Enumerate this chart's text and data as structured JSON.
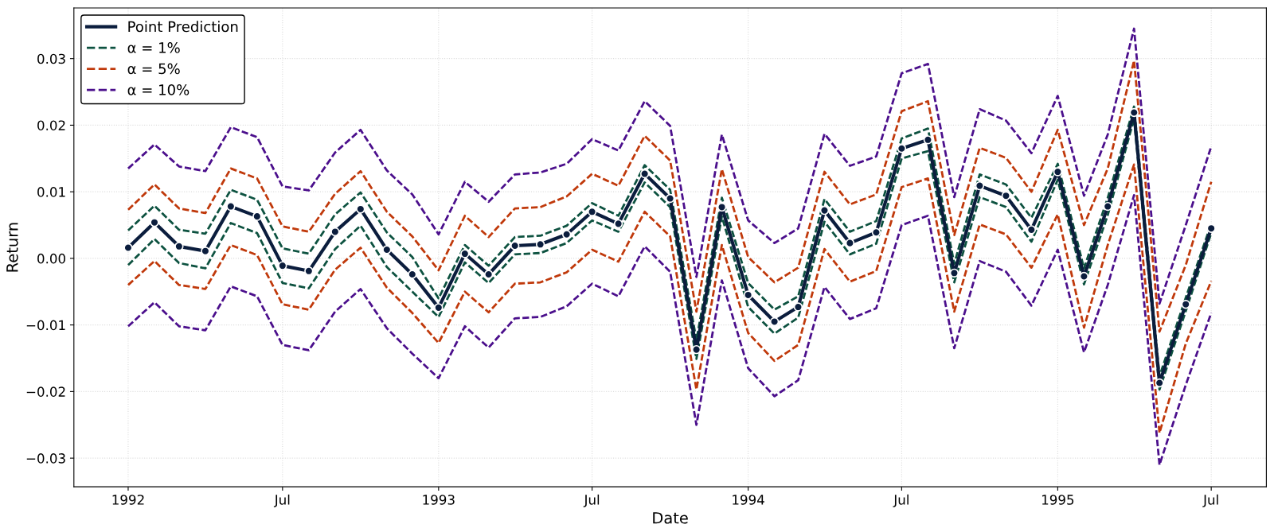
{
  "chart_data": {
    "type": "line",
    "xlabel": "Date",
    "ylabel": "Return",
    "x": [
      "1992-01",
      "1992-02",
      "1992-03",
      "1992-04",
      "1992-05",
      "1992-06",
      "1992-07",
      "1992-08",
      "1992-09",
      "1992-10",
      "1992-11",
      "1992-12",
      "1993-01",
      "1993-02",
      "1993-03",
      "1993-04",
      "1993-05",
      "1993-06",
      "1993-07",
      "1993-08",
      "1993-09",
      "1993-10",
      "1993-11",
      "1993-12",
      "1994-01",
      "1994-02",
      "1994-03",
      "1994-04",
      "1994-05",
      "1994-06",
      "1994-07",
      "1994-08",
      "1994-09",
      "1994-10",
      "1994-11",
      "1994-12",
      "1995-01",
      "1995-02",
      "1995-03",
      "1995-04",
      "1995-05",
      "1995-06",
      "1995-07"
    ],
    "series": [
      {
        "name": "α = 10%",
        "color": "#4b0f8c",
        "line_style": "dashed",
        "marker": "none",
        "values": [
          0.0135,
          0.0171,
          0.0138,
          0.0131,
          0.0197,
          0.0182,
          0.0108,
          0.0102,
          0.0159,
          0.0193,
          0.0132,
          0.0096,
          0.0036,
          0.0115,
          0.0085,
          0.0126,
          0.0129,
          0.0142,
          0.0179,
          0.0162,
          0.0236,
          0.0199,
          -0.0028,
          0.0186,
          0.0057,
          0.0023,
          0.0045,
          0.0187,
          0.0139,
          0.0153,
          0.0278,
          0.0292,
          0.0092,
          0.0224,
          0.0207,
          0.0158,
          0.0244,
          0.0094,
          0.0186,
          0.0345,
          -0.0068,
          0.005,
          0.0168
        ]
      },
      {
        "color": "#4b0f8c",
        "line_style": "dashed",
        "marker": "none",
        "values": [
          -0.0102,
          -0.0066,
          -0.0102,
          -0.0108,
          -0.0042,
          -0.0057,
          -0.013,
          -0.0138,
          -0.008,
          -0.0046,
          -0.0105,
          -0.0143,
          -0.018,
          -0.0102,
          -0.0134,
          -0.009,
          -0.0088,
          -0.0072,
          -0.0038,
          -0.0057,
          0.0018,
          -0.002,
          -0.025,
          -0.0033,
          -0.0165,
          -0.0207,
          -0.0183,
          -0.0043,
          -0.0091,
          -0.0075,
          0.005,
          0.0064,
          -0.0135,
          -0.0004,
          -0.002,
          -0.0071,
          0.0013,
          -0.0141,
          -0.004,
          0.0095,
          -0.031,
          -0.019,
          -0.0082
        ]
      },
      {
        "name": "α = 5%",
        "color": "#c0390b",
        "line_style": "dashed",
        "marker": "none",
        "values": [
          0.0073,
          0.0111,
          0.0075,
          0.0068,
          0.0135,
          0.012,
          0.0048,
          0.004,
          0.0097,
          0.0131,
          0.007,
          0.0033,
          -0.0018,
          0.0064,
          0.0032,
          0.0075,
          0.0077,
          0.0093,
          0.0127,
          0.0109,
          0.0184,
          0.0147,
          -0.008,
          0.0134,
          0.0002,
          -0.0036,
          -0.0014,
          0.013,
          0.0081,
          0.0096,
          0.0221,
          0.0236,
          0.0035,
          0.0166,
          0.0151,
          0.01,
          0.0193,
          0.005,
          0.0135,
          0.0297,
          -0.011,
          -0.001,
          0.0115
        ]
      },
      {
        "color": "#c0390b",
        "line_style": "dashed",
        "marker": "none",
        "values": [
          -0.004,
          -0.0004,
          -0.004,
          -0.0046,
          0.002,
          0.0005,
          -0.0069,
          -0.0077,
          -0.0017,
          0.0016,
          -0.0044,
          -0.0082,
          -0.0127,
          -0.005,
          -0.0081,
          -0.0038,
          -0.0036,
          -0.0021,
          0.0013,
          -0.0005,
          0.007,
          0.0033,
          -0.0197,
          0.002,
          -0.0112,
          -0.0154,
          -0.013,
          0.0014,
          -0.0035,
          -0.0019,
          0.0107,
          0.012,
          -0.008,
          0.0051,
          0.0036,
          -0.0014,
          0.0066,
          -0.0104,
          0.002,
          0.0141,
          -0.0262,
          -0.0128,
          -0.0034
        ]
      },
      {
        "name": "α = 1%",
        "color": "#0d5240",
        "line_style": "dashed",
        "marker": "none",
        "values": [
          0.0042,
          0.0079,
          0.0043,
          0.0037,
          0.0103,
          0.0088,
          0.0015,
          0.0007,
          0.0066,
          0.0099,
          0.0039,
          0.0002,
          -0.006,
          0.002,
          -0.0011,
          0.0032,
          0.0034,
          0.0049,
          0.0083,
          0.0064,
          0.014,
          0.0103,
          -0.0123,
          0.0091,
          -0.0037,
          -0.0077,
          -0.0057,
          0.0089,
          0.004,
          0.0056,
          0.018,
          0.0195,
          -0.0008,
          0.0126,
          0.0111,
          0.0061,
          0.0142,
          -0.0015,
          0.0091,
          0.0228,
          -0.0177,
          -0.0059,
          0.0052
        ]
      },
      {
        "color": "#0d5240",
        "line_style": "dashed",
        "marker": "none",
        "values": [
          -0.001,
          0.0029,
          -0.0007,
          -0.0015,
          0.0053,
          0.0038,
          -0.0037,
          -0.0045,
          0.0014,
          0.0049,
          -0.0013,
          -0.005,
          -0.0088,
          -0.0006,
          -0.0037,
          0.0006,
          0.0008,
          0.0023,
          0.0057,
          0.004,
          0.0114,
          0.0077,
          -0.0151,
          0.0063,
          -0.0073,
          -0.0113,
          -0.0089,
          0.0055,
          0.0006,
          0.0022,
          0.015,
          0.0161,
          -0.0036,
          0.0092,
          0.0077,
          0.0025,
          0.0118,
          -0.0039,
          0.0065,
          0.021,
          -0.0197,
          -0.0079,
          0.0038
        ]
      },
      {
        "name": "Point Prediction",
        "color": "#0b1d3d",
        "line_style": "solid",
        "marker": "circle",
        "values": [
          0.0016,
          0.0054,
          0.0018,
          0.0011,
          0.0078,
          0.0063,
          -0.0011,
          -0.0019,
          0.004,
          0.0074,
          0.0013,
          -0.0024,
          -0.0074,
          0.0007,
          -0.0024,
          0.0019,
          0.0021,
          0.0036,
          0.007,
          0.0052,
          0.0127,
          0.009,
          -0.0137,
          0.0077,
          -0.0055,
          -0.0095,
          -0.0073,
          0.0072,
          0.0023,
          0.0039,
          0.0165,
          0.0178,
          -0.0022,
          0.0109,
          0.0094,
          0.0043,
          0.013,
          -0.0027,
          0.0078,
          0.0219,
          -0.0187,
          -0.0069,
          0.0045
        ]
      }
    ],
    "xlim": [
      "1991-10-29",
      "1995-09-04"
    ],
    "xticks": [
      {
        "value": "1992-01",
        "label": "1992"
      },
      {
        "value": "1992-07",
        "label": "Jul"
      },
      {
        "value": "1993-01",
        "label": "1993"
      },
      {
        "value": "1993-07",
        "label": "Jul"
      },
      {
        "value": "1994-01",
        "label": "1994"
      },
      {
        "value": "1994-07",
        "label": "Jul"
      },
      {
        "value": "1995-01",
        "label": "1995"
      },
      {
        "value": "1995-07",
        "label": "Jul"
      }
    ],
    "ylim": [
      -0.0343,
      0.0376
    ],
    "yticks": [
      {
        "value": -0.03,
        "label": "−0.03"
      },
      {
        "value": -0.02,
        "label": "−0.02"
      },
      {
        "value": -0.01,
        "label": "−0.01"
      },
      {
        "value": 0,
        "label": "0.00"
      },
      {
        "value": 0.01,
        "label": "0.01"
      },
      {
        "value": 0.02,
        "label": "0.02"
      },
      {
        "value": 0.03,
        "label": "0.03"
      }
    ],
    "grid": true,
    "legend": "top left"
  }
}
